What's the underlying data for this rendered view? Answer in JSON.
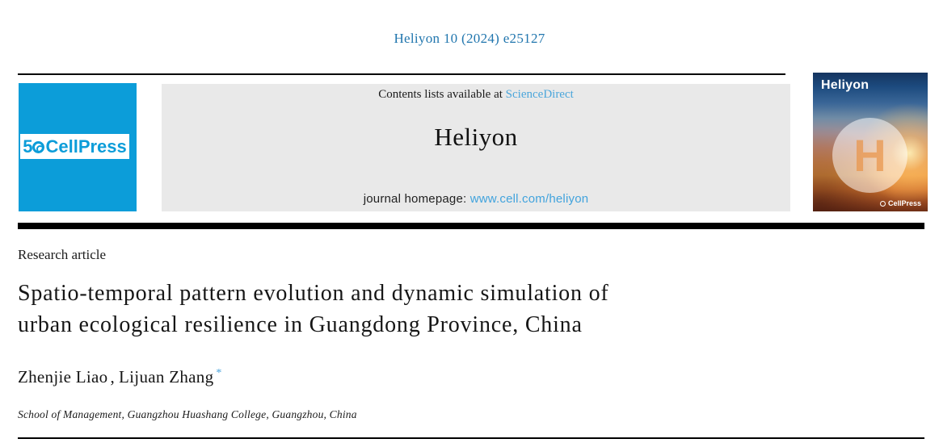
{
  "header": {
    "citation": "Heliyon 10 (2024) e25127"
  },
  "banner": {
    "cellpress_logo": {
      "anniversary_number": "5",
      "name": "CellPress"
    },
    "journal": {
      "contents_text": "Contents lists available at",
      "sciencedirect_link": "ScienceDirect",
      "title": "Heliyon",
      "homepage_label": "journal homepage:",
      "homepage_link": "www.cell.com/heliyon"
    },
    "cover": {
      "journal_name": "Heliyon",
      "monogram": "H",
      "publisher": "CellPress"
    }
  },
  "article": {
    "type": "Research article",
    "title_line1": "Spatio-temporal pattern evolution and dynamic simulation of",
    "title_line2": "urban ecological resilience in Guangdong Province, China",
    "authors": [
      {
        "name": "Zhenjie Liao",
        "marker": ""
      },
      {
        "name": "Lijuan Zhang",
        "marker": "*"
      }
    ],
    "author_separator": ",",
    "affiliation": "School of Management, Guangzhou Huashang College, Guangzhou, China"
  },
  "colors": {
    "cellpress_cyan": "#0c9dd9",
    "citation_blue": "#2176ae",
    "sciencedirect_link_blue": "#4ba6db",
    "homepage_link_blue": "#41a3dd",
    "banner_gray": "#e9e9e9"
  }
}
